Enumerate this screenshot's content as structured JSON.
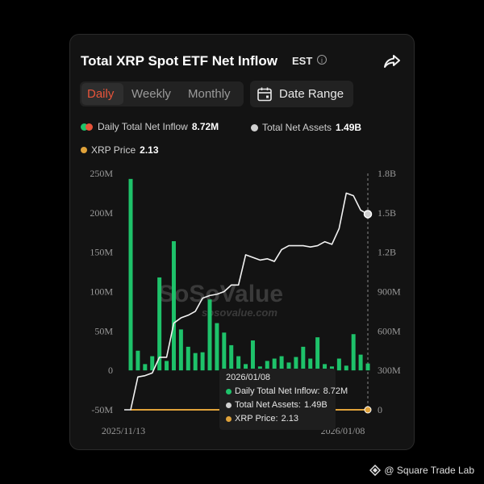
{
  "header": {
    "title": "Total XRP Spot ETF Net Inflow",
    "timezone": "EST",
    "info_glyph": "i",
    "icons": [
      "info-icon",
      "share-icon"
    ]
  },
  "tabs": [
    {
      "label": "Daily",
      "active": true
    },
    {
      "label": "Weekly",
      "active": false
    },
    {
      "label": "Monthly",
      "active": false
    }
  ],
  "date_range": {
    "label": "Date Range",
    "icon": "calendar-icon"
  },
  "legend": {
    "inflow_label": "Daily Total Net Inflow",
    "inflow_value": "8.72M",
    "assets_label": "Total Net Assets",
    "assets_value": "1.49B",
    "price_label": "XRP Price",
    "price_value": "2.13"
  },
  "colors": {
    "inflow": "#1ec26a",
    "outflow": "#e8543a",
    "assets": "#d6d6d6",
    "price": "#e0a23a",
    "accent": "#e8543a"
  },
  "chart_data": {
    "type": "bar",
    "x_start": "2025/11/13",
    "x_end": "2026/01/08",
    "left_axis": {
      "ticks": [
        "250M",
        "200M",
        "150M",
        "100M",
        "50M",
        "0",
        "-50M"
      ],
      "min": -50,
      "max": 250,
      "unit": "M"
    },
    "right_axis": {
      "ticks": [
        "1.8B",
        "1.5B",
        "1.2B",
        "900M",
        "600M",
        "300M",
        "0"
      ],
      "min": 0,
      "max": 1.8,
      "unit": "B"
    },
    "series": [
      {
        "name": "Daily Total Net Inflow",
        "values": [
          243,
          25,
          8,
          18,
          118,
          12,
          164,
          52,
          30,
          22,
          23,
          90,
          60,
          48,
          32,
          18,
          8,
          38,
          5,
          12,
          15,
          18,
          10,
          17,
          30,
          15,
          42,
          8,
          5,
          15,
          6,
          46,
          20,
          8.72
        ]
      },
      {
        "name": "Total Net Assets",
        "values": [
          0,
          0.25,
          0.26,
          0.28,
          0.4,
          0.4,
          0.66,
          0.7,
          0.72,
          0.75,
          0.85,
          0.87,
          0.88,
          0.9,
          0.95,
          0.95,
          1.18,
          1.16,
          1.14,
          1.15,
          1.13,
          1.22,
          1.25,
          1.25,
          1.25,
          1.24,
          1.25,
          1.28,
          1.26,
          1.38,
          1.65,
          1.63,
          1.52,
          1.49
        ]
      },
      {
        "name": "XRP Price",
        "values": [
          2.3,
          2.2,
          2.2,
          2.1,
          2.2,
          2.2,
          2.0,
          2.1,
          2.0,
          2.0,
          2.0,
          1.9,
          1.9,
          1.9,
          1.9,
          1.8,
          1.9,
          1.9,
          1.9,
          1.9,
          1.9,
          1.9,
          1.9,
          1.9,
          1.9,
          1.9,
          2.0,
          2.0,
          2.0,
          2.1,
          2.2,
          2.2,
          2.1,
          2.13
        ]
      }
    ]
  },
  "tooltip": {
    "date": "2026/01/08",
    "inflow_label": "Daily Total Net Inflow:",
    "inflow_value": "8.72M",
    "assets_label": "Total Net Assets:",
    "assets_value": "1.49B",
    "price_label": "XRP Price:",
    "price_value": "2.13"
  },
  "watermark": {
    "brand": "SoSoValue",
    "domain": "sosovalue.com"
  },
  "footer": {
    "text": "@ Square Trade Lab"
  }
}
